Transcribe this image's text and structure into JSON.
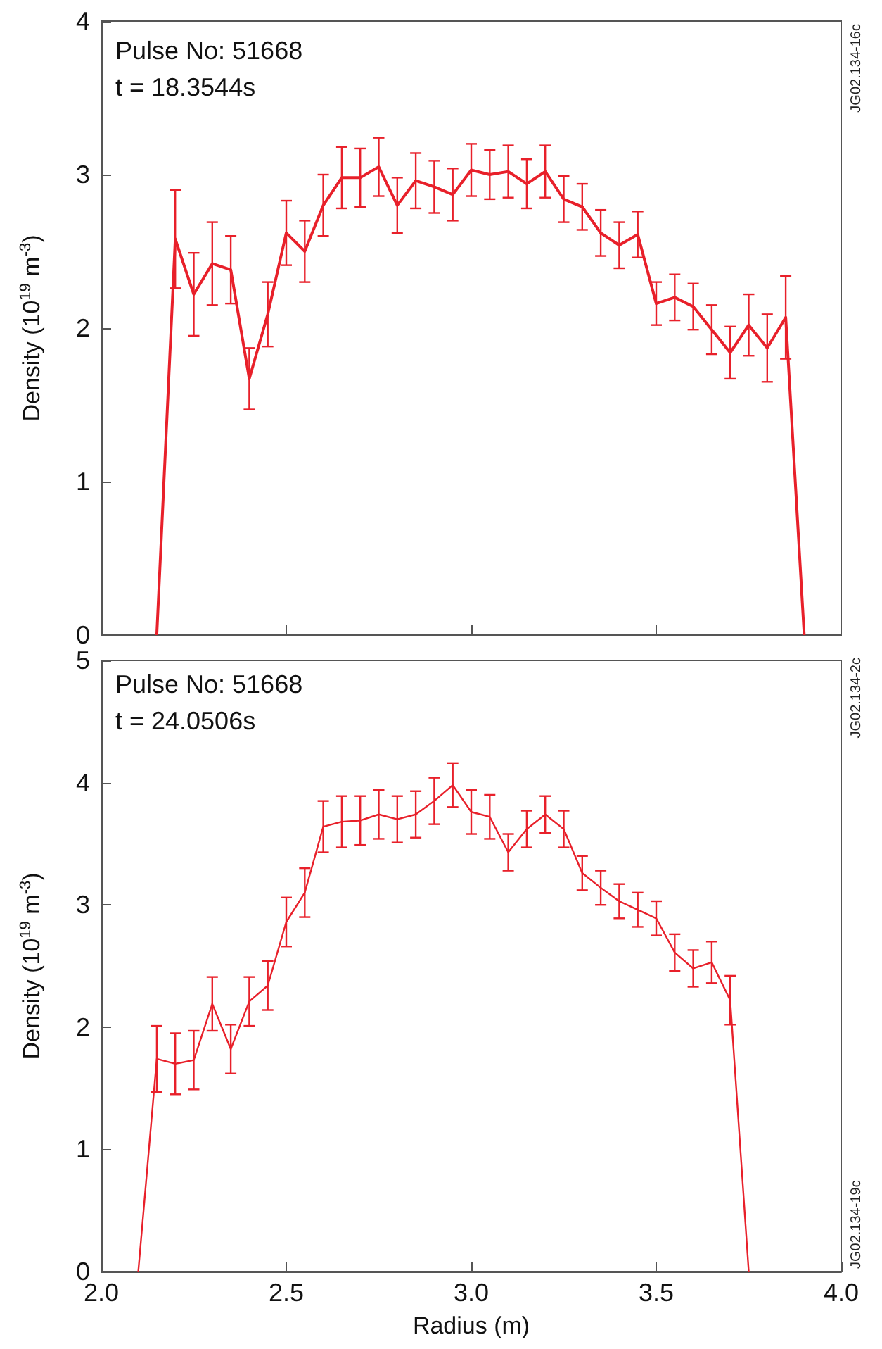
{
  "chart_data": [
    {
      "type": "line",
      "ylabel": "Density (10$^{19}$ m$^{-3}$)",
      "annotations": [
        "Pulse No: 51668",
        "t = 18.3544s",
        "JG02.134-16c"
      ],
      "x": [
        2.15,
        2.2,
        2.25,
        2.3,
        2.35,
        2.4,
        2.45,
        2.5,
        2.55,
        2.6,
        2.65,
        2.7,
        2.75,
        2.8,
        2.85,
        2.9,
        2.95,
        3.0,
        3.05,
        3.1,
        3.15,
        3.2,
        3.25,
        3.3,
        3.35,
        3.4,
        3.45,
        3.5,
        3.55,
        3.6,
        3.65,
        3.7,
        3.75,
        3.8,
        3.85,
        3.9
      ],
      "series": [
        {
          "color": "#e8202a",
          "values": [
            0,
            2.58,
            2.22,
            2.42,
            2.38,
            1.67,
            2.09,
            2.62,
            2.5,
            2.8,
            2.98,
            2.98,
            3.05,
            2.8,
            2.96,
            2.92,
            2.87,
            3.03,
            3.0,
            3.02,
            2.94,
            3.02,
            2.84,
            2.79,
            2.62,
            2.54,
            2.61,
            2.16,
            2.2,
            2.14,
            1.99,
            1.84,
            2.02,
            1.87,
            2.07,
            0
          ],
          "errors": [
            null,
            0.32,
            0.27,
            0.27,
            0.22,
            0.2,
            0.21,
            0.21,
            0.2,
            0.2,
            0.2,
            0.19,
            0.19,
            0.18,
            0.18,
            0.17,
            0.17,
            0.17,
            0.16,
            0.17,
            0.16,
            0.17,
            0.15,
            0.15,
            0.15,
            0.15,
            0.15,
            0.14,
            0.15,
            0.15,
            0.16,
            0.17,
            0.2,
            0.22,
            0.27,
            null
          ]
        }
      ],
      "xlim": [
        2.0,
        4.0
      ],
      "xticks": [
        {
          "value": 2.5,
          "label": null
        },
        {
          "value": 3.0,
          "label": null
        },
        {
          "value": 3.5,
          "label": null
        }
      ],
      "ylim": [
        0,
        4
      ],
      "yticks": [
        0,
        1,
        2,
        3,
        4
      ],
      "tick_labels": "y",
      "grid": false,
      "marker": "none",
      "line_style": "solid"
    },
    {
      "type": "line",
      "xlabel": "Radius (m)",
      "ylabel": "Density (10$^{19}$ m$^{-3}$)",
      "annotations": [
        "Pulse No: 51668",
        "t = 24.0506s",
        "JG02.134-2c",
        "JG02.134-19c"
      ],
      "x": [
        2.1,
        2.15,
        2.2,
        2.25,
        2.3,
        2.35,
        2.4,
        2.45,
        2.5,
        2.55,
        2.6,
        2.65,
        2.7,
        2.75,
        2.8,
        2.85,
        2.9,
        2.95,
        3.0,
        3.05,
        3.1,
        3.15,
        3.2,
        3.25,
        3.3,
        3.35,
        3.4,
        3.45,
        3.5,
        3.55,
        3.6,
        3.65,
        3.7,
        3.75
      ],
      "series": [
        {
          "color": "#e8202a",
          "values": [
            0,
            1.74,
            1.7,
            1.73,
            2.19,
            1.82,
            2.21,
            2.34,
            2.86,
            3.1,
            3.64,
            3.68,
            3.69,
            3.74,
            3.7,
            3.74,
            3.85,
            3.98,
            3.76,
            3.72,
            3.43,
            3.62,
            3.74,
            3.62,
            3.26,
            3.14,
            3.03,
            2.96,
            2.89,
            2.61,
            2.48,
            2.53,
            2.22,
            0
          ],
          "errors": [
            null,
            0.27,
            0.25,
            0.24,
            0.22,
            0.2,
            0.2,
            0.2,
            0.2,
            0.2,
            0.21,
            0.21,
            0.2,
            0.2,
            0.19,
            0.19,
            0.19,
            0.18,
            0.18,
            0.18,
            0.15,
            0.15,
            0.15,
            0.15,
            0.14,
            0.14,
            0.14,
            0.14,
            0.14,
            0.15,
            0.15,
            0.17,
            0.2,
            null
          ]
        }
      ],
      "xlim": [
        2.0,
        4.0
      ],
      "xticks": [
        {
          "value": 2.0,
          "label": "2.0"
        },
        {
          "value": 2.5,
          "label": "2.5"
        },
        {
          "value": 3.0,
          "label": "3.0"
        },
        {
          "value": 3.5,
          "label": "3.5"
        },
        {
          "value": 4.0,
          "label": "4.0"
        }
      ],
      "ylim": [
        0,
        5
      ],
      "yticks": [
        0,
        1,
        2,
        3,
        4,
        5
      ],
      "grid": false,
      "marker": "none",
      "line_style": "solid"
    }
  ]
}
